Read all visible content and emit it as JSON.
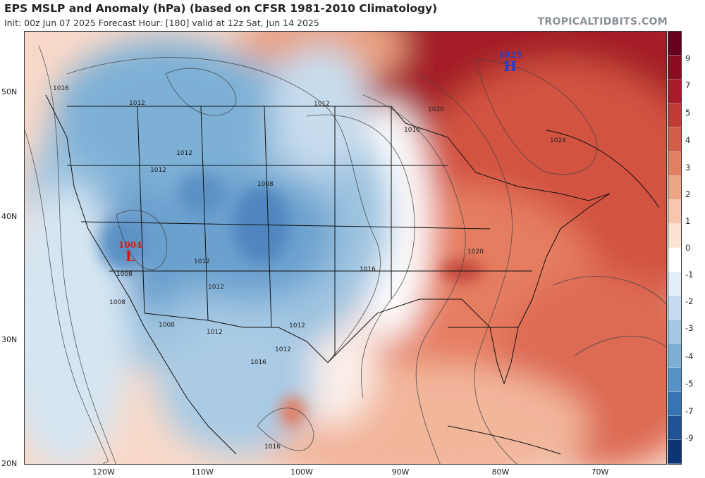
{
  "header": {
    "title": "EPS MSLP and Anomaly (hPa) (based on CFSR 1981-2010 Climatology)",
    "subtitle": "Init: 00z Jun 07 2025   Forecast Hour: [180]   valid at 12z Sat, Jun 14 2025",
    "brand": "TROPICALTIDBITS.COM"
  },
  "axes": {
    "lat_labels": [
      "50N",
      "40N",
      "30N",
      "20N"
    ],
    "lon_labels": [
      "120W",
      "110W",
      "100W",
      "90W",
      "80W",
      "70W"
    ]
  },
  "colorbar": {
    "labels": [
      "9",
      "7",
      "5",
      "4",
      "3",
      "2",
      "1",
      "0",
      "-1",
      "-2",
      "-3",
      "-4",
      "-5",
      "-7",
      "-9"
    ],
    "colors": [
      "#67001f",
      "#8b0c20",
      "#a8192a",
      "#c03a37",
      "#d35c4a",
      "#e27f62",
      "#eea486",
      "#f6c6ae",
      "#fbe3d6",
      "#ffffff",
      "#e3eef7",
      "#c6dcee",
      "#a3c8e3",
      "#7eb0d6",
      "#5793c7",
      "#3673b2",
      "#1f5297",
      "#0d3576"
    ]
  },
  "map": {
    "isobar_labels": [
      "1016",
      "1012",
      "1012",
      "1012",
      "1012",
      "1008",
      "1008",
      "1008",
      "1012",
      "1012",
      "1016",
      "1016",
      "1020",
      "1020",
      "1024",
      "1016",
      "1012",
      "1012",
      "1016",
      "1008",
      "1012"
    ],
    "high_center": {
      "symbol": "H",
      "value": "1025"
    },
    "low_center": {
      "symbol": "L",
      "value": "1004"
    }
  }
}
